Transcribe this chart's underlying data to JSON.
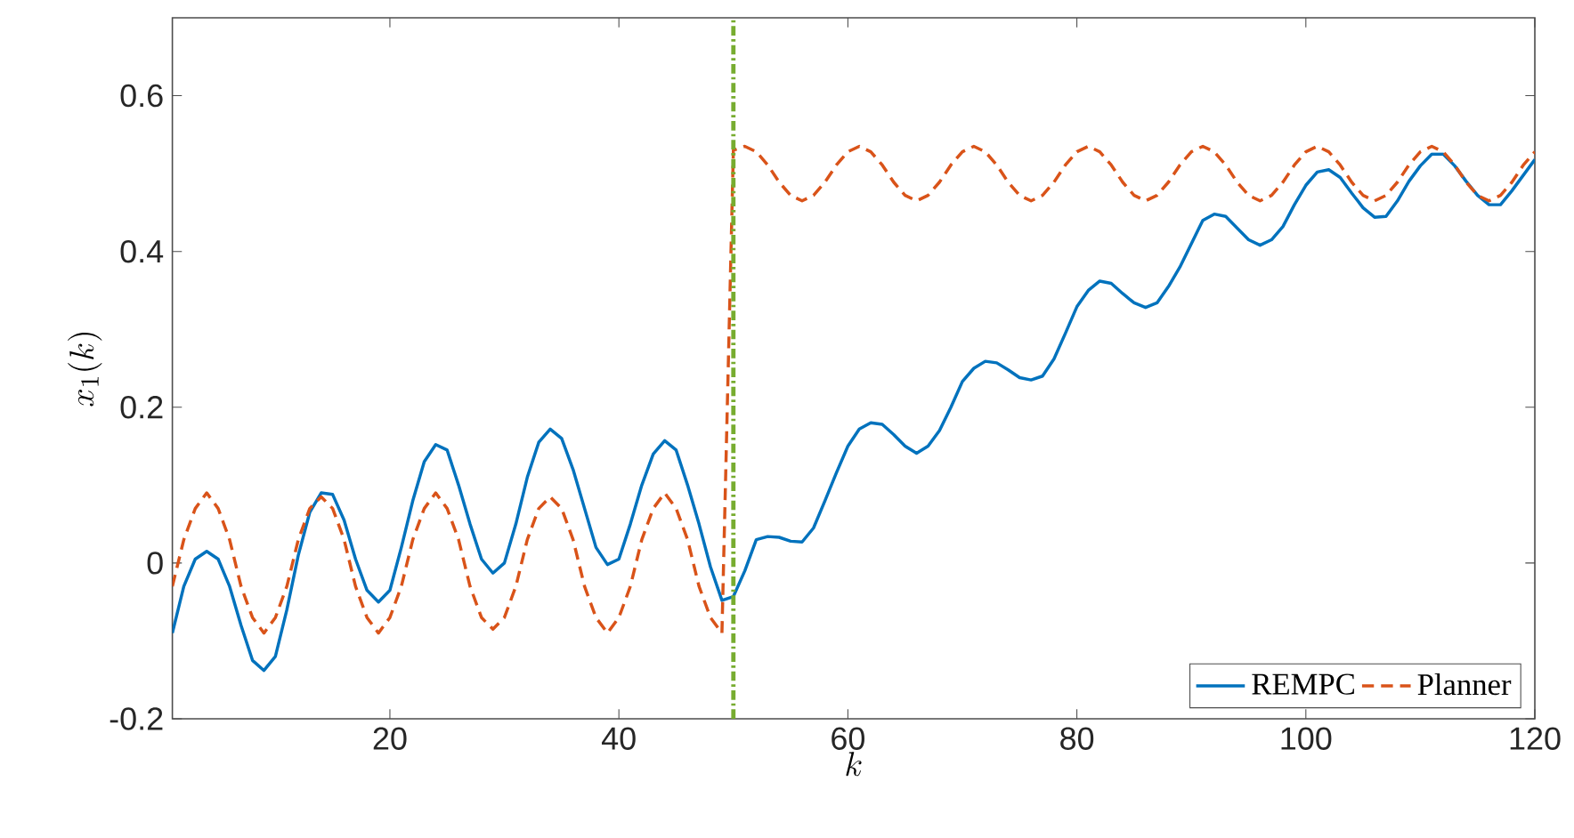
{
  "chart_data": {
    "type": "line",
    "xlabel": "k",
    "ylabel": "x_1(k)",
    "x": [
      1,
      2,
      3,
      4,
      5,
      6,
      7,
      8,
      9,
      10,
      11,
      12,
      13,
      14,
      15,
      16,
      17,
      18,
      19,
      20,
      21,
      22,
      23,
      24,
      25,
      26,
      27,
      28,
      29,
      30,
      31,
      32,
      33,
      34,
      35,
      36,
      37,
      38,
      39,
      40,
      41,
      42,
      43,
      44,
      45,
      46,
      47,
      48,
      49,
      50,
      51,
      52,
      53,
      54,
      55,
      56,
      57,
      58,
      59,
      60,
      61,
      62,
      63,
      64,
      65,
      66,
      67,
      68,
      69,
      70,
      71,
      72,
      73,
      74,
      75,
      76,
      77,
      78,
      79,
      80,
      81,
      82,
      83,
      84,
      85,
      86,
      87,
      88,
      89,
      90,
      91,
      92,
      93,
      94,
      95,
      96,
      97,
      98,
      99,
      100,
      101,
      102,
      103,
      104,
      105,
      106,
      107,
      108,
      109,
      110,
      111,
      112,
      113,
      114,
      115,
      116,
      117,
      118,
      119,
      120
    ],
    "series": [
      {
        "name": "REMPC",
        "color": "#0072bd",
        "line_style": "solid",
        "values": [
          -0.09,
          -0.03,
          0.005,
          0.015,
          0.005,
          -0.03,
          -0.08,
          -0.125,
          -0.138,
          -0.12,
          -0.06,
          0.01,
          0.065,
          0.09,
          0.088,
          0.055,
          0.005,
          -0.035,
          -0.05,
          -0.035,
          0.02,
          0.08,
          0.13,
          0.152,
          0.145,
          0.1,
          0.05,
          0.005,
          -0.013,
          0.0,
          0.05,
          0.11,
          0.155,
          0.172,
          0.16,
          0.12,
          0.07,
          0.02,
          -0.002,
          0.005,
          0.05,
          0.1,
          0.14,
          0.157,
          0.145,
          0.1,
          0.05,
          -0.005,
          -0.048,
          -0.043,
          -0.01,
          0.03,
          0.034,
          0.033,
          0.028,
          0.027,
          0.045,
          0.08,
          0.116,
          0.15,
          0.172,
          0.18,
          0.178,
          0.165,
          0.15,
          0.141,
          0.15,
          0.17,
          0.2,
          0.233,
          0.25,
          0.259,
          0.257,
          0.248,
          0.238,
          0.235,
          0.24,
          0.262,
          0.295,
          0.329,
          0.35,
          0.362,
          0.359,
          0.346,
          0.334,
          0.328,
          0.334,
          0.355,
          0.38,
          0.41,
          0.44,
          0.448,
          0.445,
          0.43,
          0.415,
          0.408,
          0.415,
          0.432,
          0.46,
          0.485,
          0.502,
          0.505,
          0.495,
          0.475,
          0.456,
          0.444,
          0.445,
          0.465,
          0.49,
          0.51,
          0.525,
          0.525,
          0.51,
          0.49,
          0.472,
          0.46,
          0.46,
          0.478,
          0.498,
          0.518
        ]
      },
      {
        "name": "Planner",
        "color": "#d95319",
        "line_style": "dashed",
        "values": [
          -0.03,
          0.03,
          0.07,
          0.09,
          0.07,
          0.03,
          -0.03,
          -0.07,
          -0.09,
          -0.07,
          -0.03,
          0.03,
          0.07,
          0.085,
          0.07,
          0.03,
          -0.03,
          -0.07,
          -0.09,
          -0.07,
          -0.03,
          0.03,
          0.07,
          0.09,
          0.07,
          0.03,
          -0.03,
          -0.07,
          -0.085,
          -0.07,
          -0.03,
          0.03,
          0.07,
          0.085,
          0.07,
          0.03,
          -0.03,
          -0.07,
          -0.09,
          -0.07,
          -0.03,
          0.03,
          0.07,
          0.09,
          0.07,
          0.03,
          -0.03,
          -0.07,
          -0.09,
          0.53,
          0.535,
          0.528,
          0.511,
          0.489,
          0.472,
          0.465,
          0.472,
          0.489,
          0.511,
          0.528,
          0.535,
          0.528,
          0.511,
          0.489,
          0.472,
          0.465,
          0.472,
          0.489,
          0.511,
          0.528,
          0.535,
          0.528,
          0.511,
          0.489,
          0.472,
          0.465,
          0.472,
          0.489,
          0.511,
          0.528,
          0.535,
          0.528,
          0.511,
          0.489,
          0.472,
          0.465,
          0.472,
          0.489,
          0.511,
          0.528,
          0.535,
          0.528,
          0.511,
          0.489,
          0.472,
          0.465,
          0.472,
          0.489,
          0.511,
          0.528,
          0.535,
          0.528,
          0.511,
          0.489,
          0.472,
          0.465,
          0.472,
          0.489,
          0.511,
          0.528,
          0.535,
          0.528,
          0.511,
          0.489,
          0.472,
          0.465,
          0.472,
          0.489,
          0.511,
          0.528
        ]
      }
    ],
    "ref_lines": [
      {
        "axis": "x",
        "value": 50,
        "color": "#77ac30",
        "line_style": "dashdotted"
      }
    ],
    "xlim": [
      1,
      120
    ],
    "ylim": [
      -0.2,
      0.7
    ],
    "xticks": [
      20,
      40,
      60,
      80,
      100,
      120
    ],
    "yticks": [
      -0.2,
      0,
      0.2,
      0.4,
      0.6
    ],
    "grid": false,
    "legend": "bottom right"
  }
}
